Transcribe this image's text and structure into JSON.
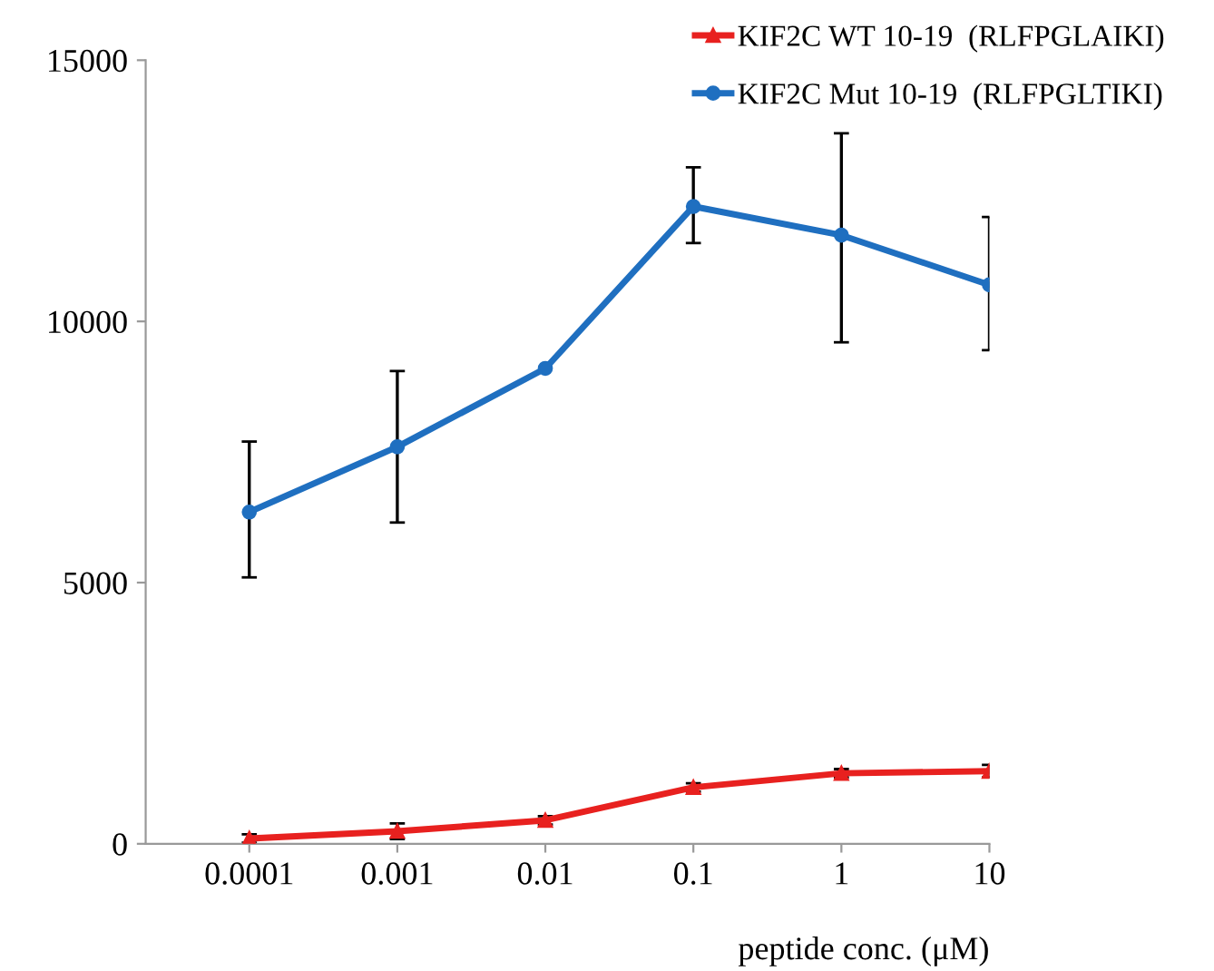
{
  "chart_data": {
    "type": "line",
    "xlabel": "peptide conc. (μM)",
    "categories": [
      "0.0001",
      "0.001",
      "0.01",
      "0.1",
      "1",
      "10"
    ],
    "series": [
      {
        "name": "KIF2C WT 10-19  (RLFPGLAIKI)",
        "color": "#e8211f",
        "marker": "triangle",
        "values": [
          100,
          240,
          450,
          1080,
          1350,
          1390
        ],
        "errors": [
          80,
          150,
          80,
          80,
          80,
          120
        ]
      },
      {
        "name": "KIF2C Mut 10-19  (RLFPGLTIKI)",
        "color": "#1f6fc0",
        "marker": "circle",
        "values": [
          6350,
          7600,
          9100,
          12200,
          11650,
          10700
        ],
        "errors": [
          [
            5100,
            7700
          ],
          [
            6150,
            9050
          ],
          null,
          [
            11500,
            12950
          ],
          [
            9600,
            13600
          ],
          [
            9450,
            12000
          ]
        ]
      }
    ],
    "ylim": [
      0,
      15000
    ],
    "yticks": [
      0,
      5000,
      10000,
      15000
    ],
    "grid": false,
    "legend": "top right",
    "line_style": "solid"
  }
}
